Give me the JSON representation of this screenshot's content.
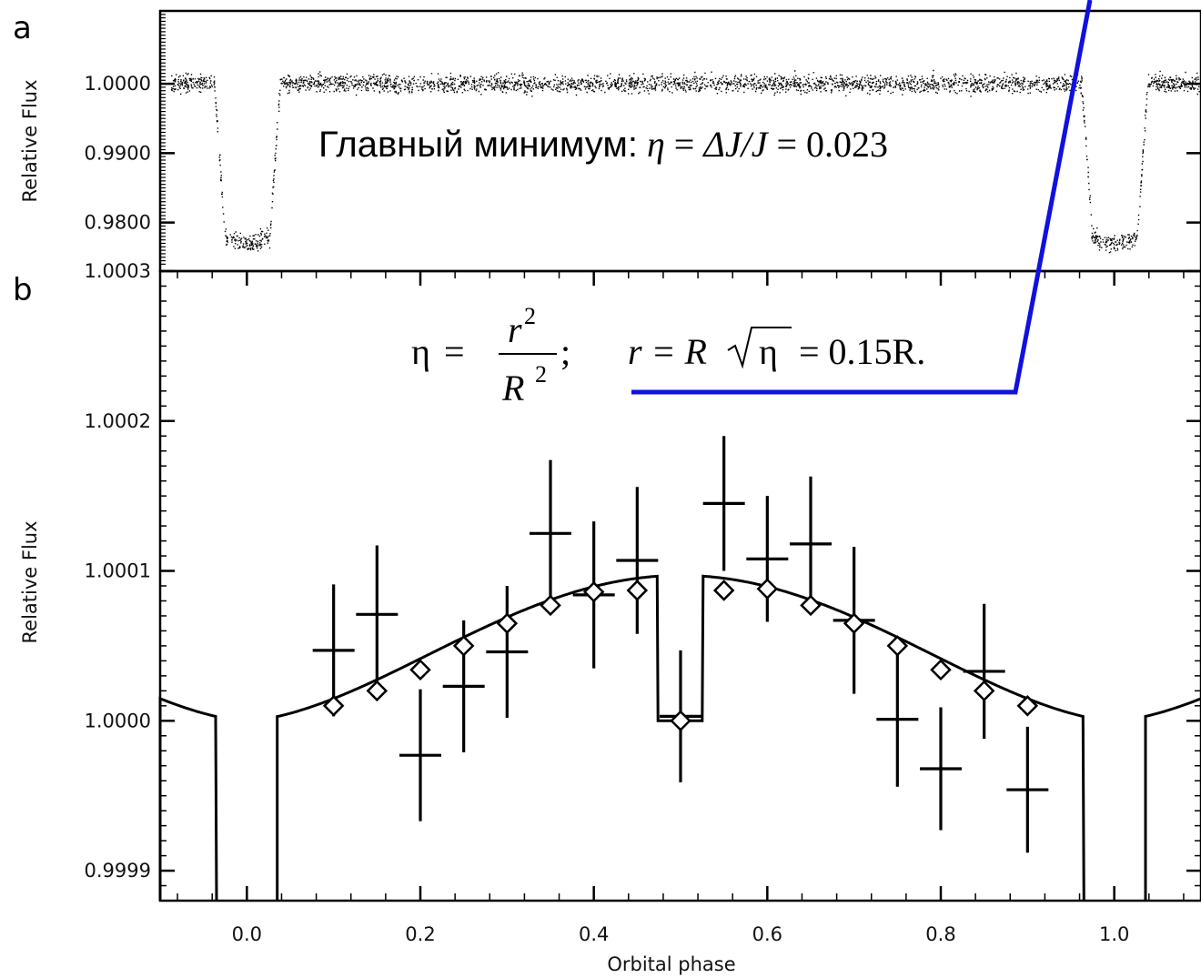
{
  "chart_data": [
    {
      "panel": "a",
      "type": "scatter",
      "ylabel": "Relative Flux",
      "xlim": [
        -0.1,
        1.1
      ],
      "ylim": [
        0.973,
        1.0105
      ],
      "yticks": [
        "1.0000",
        "0.9900",
        "0.9800"
      ],
      "ytick_values": [
        1.0,
        0.99,
        0.98
      ],
      "baseline": 1.0,
      "transit_depth": 0.023,
      "transit_centers": [
        0.0,
        1.0
      ],
      "annotation": {
        "label": "Главный минимум:",
        "eta": "η",
        "eq1": " = ",
        "ratio": "ΔJ/J",
        "eq2": " = 0.023"
      }
    },
    {
      "panel": "b",
      "type": "line",
      "xlabel": "Orbital phase",
      "ylabel": "Relative Flux",
      "xlim": [
        -0.1,
        1.1
      ],
      "ylim": [
        0.99988,
        1.0003
      ],
      "xticks": [
        "0.0",
        "0.2",
        "0.4",
        "0.6",
        "0.8",
        "1.0"
      ],
      "xtick_values": [
        0.0,
        0.2,
        0.4,
        0.6,
        0.8,
        1.0
      ],
      "yticks": [
        "1.0003",
        "1.0002",
        "1.0001",
        "1.0000",
        "0.9999"
      ],
      "ytick_values": [
        1.0003,
        1.0002,
        1.0001,
        1.0,
        0.9999
      ],
      "model_peak": 1.000097,
      "model_eclipse_depth": 9.7e-05,
      "observations": [
        {
          "x": 0.1,
          "y": 1.000047,
          "err": 4.4e-05
        },
        {
          "x": 0.15,
          "y": 1.000071,
          "err": 4.6e-05
        },
        {
          "x": 0.2,
          "y": 0.999977,
          "err": 4.4e-05
        },
        {
          "x": 0.25,
          "y": 1.000023,
          "err": 4.4e-05
        },
        {
          "x": 0.3,
          "y": 1.000046,
          "err": 4.4e-05
        },
        {
          "x": 0.35,
          "y": 1.000125,
          "err": 4.9e-05
        },
        {
          "x": 0.4,
          "y": 1.000084,
          "err": 4.9e-05
        },
        {
          "x": 0.45,
          "y": 1.000107,
          "err": 4.9e-05
        },
        {
          "x": 0.5,
          "y": 1.000003,
          "err": 4.4e-05
        },
        {
          "x": 0.55,
          "y": 1.000145,
          "err": 4.5e-05
        },
        {
          "x": 0.6,
          "y": 1.000108,
          "err": 4.2e-05
        },
        {
          "x": 0.65,
          "y": 1.000118,
          "err": 4.5e-05
        },
        {
          "x": 0.7,
          "y": 1.000067,
          "err": 4.9e-05
        },
        {
          "x": 0.75,
          "y": 1.000001,
          "err": 4.5e-05
        },
        {
          "x": 0.8,
          "y": 0.999968,
          "err": 4.1e-05
        },
        {
          "x": 0.85,
          "y": 1.000033,
          "err": 4.5e-05
        },
        {
          "x": 0.9,
          "y": 0.999954,
          "err": 4.2e-05
        }
      ],
      "model_points": [
        {
          "x": 0.1,
          "y": 1.00001
        },
        {
          "x": 0.15,
          "y": 1.00002
        },
        {
          "x": 0.2,
          "y": 1.000034
        },
        {
          "x": 0.25,
          "y": 1.00005
        },
        {
          "x": 0.3,
          "y": 1.000065
        },
        {
          "x": 0.35,
          "y": 1.000077
        },
        {
          "x": 0.4,
          "y": 1.000086
        },
        {
          "x": 0.45,
          "y": 1.000087
        },
        {
          "x": 0.5,
          "y": 1.0
        },
        {
          "x": 0.55,
          "y": 1.000087
        },
        {
          "x": 0.6,
          "y": 1.000088
        },
        {
          "x": 0.65,
          "y": 1.000077
        },
        {
          "x": 0.7,
          "y": 1.000065
        },
        {
          "x": 0.75,
          "y": 1.00005
        },
        {
          "x": 0.8,
          "y": 1.000034
        },
        {
          "x": 0.85,
          "y": 1.00002
        },
        {
          "x": 0.9,
          "y": 1.00001
        }
      ],
      "formula": {
        "eta": "η",
        "eq": " = ",
        "r": "r",
        "R": "R",
        "exp": "2",
        "semicolon": ";",
        "eq_r": "r = R",
        "eta2": "η",
        "result": " = 0.15R."
      }
    }
  ],
  "colors": {
    "axes": "#000000",
    "data": "#000000",
    "pointer_line": "#1010e0"
  }
}
